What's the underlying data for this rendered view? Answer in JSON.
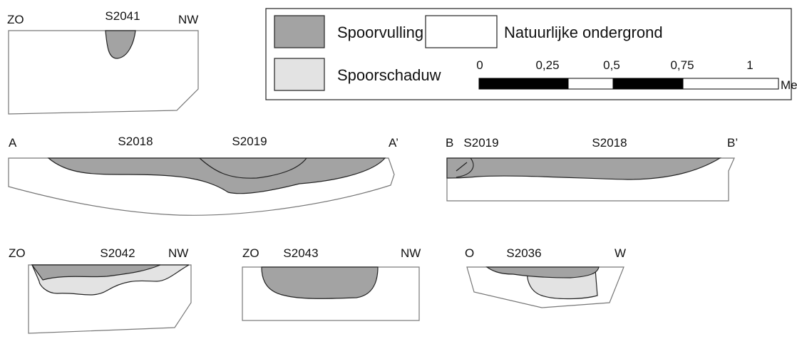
{
  "legend": {
    "items": [
      {
        "label": "Spoorvulling"
      },
      {
        "label": "Natuurlijke ondergrond"
      },
      {
        "label": "Spoorschaduw"
      }
    ],
    "scale": {
      "ticks": [
        "0",
        "0,25",
        "0,5",
        "0,75",
        "1"
      ],
      "unit": "Meter"
    }
  },
  "sections": [
    {
      "labels": [
        "ZO",
        "S2041",
        "NW"
      ]
    },
    {
      "labels": [
        "A",
        "S2018",
        "S2019",
        "A’"
      ]
    },
    {
      "labels": [
        "B",
        "S2019",
        "S2018",
        "B’"
      ]
    },
    {
      "labels": [
        "ZO",
        "S2042",
        "NW"
      ]
    },
    {
      "labels": [
        "ZO",
        "S2043",
        "NW"
      ]
    },
    {
      "labels": [
        "O",
        "S2036",
        "W"
      ]
    }
  ]
}
